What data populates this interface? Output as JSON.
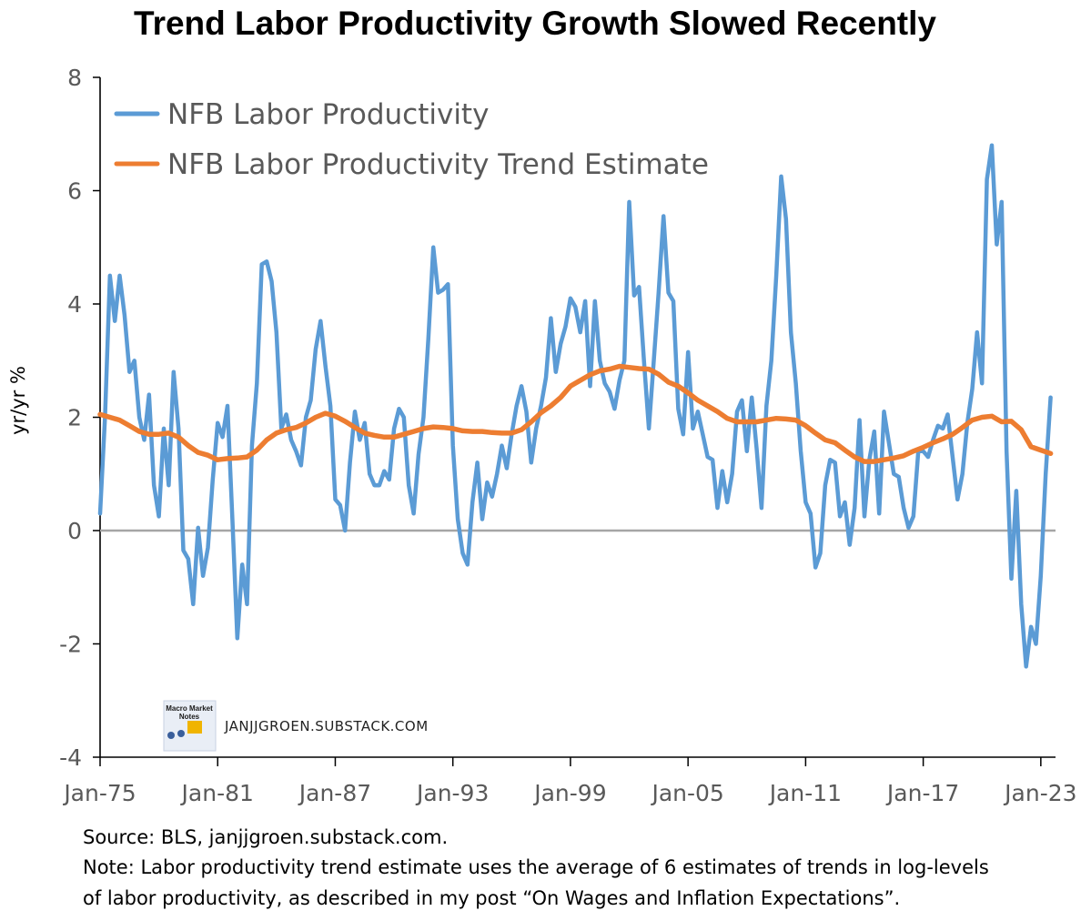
{
  "chart_data": {
    "type": "line",
    "title": "Trend Labor Productivity Growth Slowed Recently",
    "ylabel": "yr/yr %",
    "xlabel": "",
    "ylim": [
      -4,
      8
    ],
    "yticks": [
      -4,
      -2,
      0,
      2,
      4,
      6,
      8
    ],
    "ytick_labels": [
      "-4",
      "-2",
      "0",
      "2",
      "4",
      "6",
      "8"
    ],
    "xlim": [
      1975.0,
      2023.75
    ],
    "xticks": [
      1975,
      1981,
      1987,
      1993,
      1999,
      2005,
      2011,
      2017,
      2023
    ],
    "xtick_labels": [
      "Jan-75",
      "Jan-81",
      "Jan-87",
      "Jan-93",
      "Jan-99",
      "Jan-05",
      "Jan-11",
      "Jan-17",
      "Jan-23"
    ],
    "grid": false,
    "zero_line": true,
    "legend_position": "top-left",
    "series": [
      {
        "name": "NFB Labor Productivity",
        "color": "#5b9bd5",
        "points": [
          [
            1975.0,
            0.3
          ],
          [
            1975.25,
            2.0
          ],
          [
            1975.5,
            4.5
          ],
          [
            1975.75,
            3.7
          ],
          [
            1976.0,
            4.5
          ],
          [
            1976.25,
            3.8
          ],
          [
            1976.5,
            2.8
          ],
          [
            1976.75,
            3.0
          ],
          [
            1977.0,
            2.0
          ],
          [
            1977.25,
            1.6
          ],
          [
            1977.5,
            2.4
          ],
          [
            1977.75,
            0.8
          ],
          [
            1978.0,
            0.25
          ],
          [
            1978.25,
            1.8
          ],
          [
            1978.5,
            0.8
          ],
          [
            1978.75,
            2.8
          ],
          [
            1979.0,
            1.8
          ],
          [
            1979.25,
            -0.35
          ],
          [
            1979.5,
            -0.5
          ],
          [
            1979.75,
            -1.3
          ],
          [
            1980.0,
            0.05
          ],
          [
            1980.25,
            -0.8
          ],
          [
            1980.5,
            -0.3
          ],
          [
            1980.75,
            0.9
          ],
          [
            1981.0,
            1.9
          ],
          [
            1981.25,
            1.65
          ],
          [
            1981.5,
            2.2
          ],
          [
            1981.75,
            0.2
          ],
          [
            1982.0,
            -1.9
          ],
          [
            1982.25,
            -0.6
          ],
          [
            1982.5,
            -1.3
          ],
          [
            1982.75,
            1.5
          ],
          [
            1983.0,
            2.6
          ],
          [
            1983.25,
            4.7
          ],
          [
            1983.5,
            4.75
          ],
          [
            1983.75,
            4.4
          ],
          [
            1984.0,
            3.5
          ],
          [
            1984.25,
            1.8
          ],
          [
            1984.5,
            2.05
          ],
          [
            1984.75,
            1.6
          ],
          [
            1985.0,
            1.4
          ],
          [
            1985.25,
            1.15
          ],
          [
            1985.5,
            2.0
          ],
          [
            1985.75,
            2.3
          ],
          [
            1986.0,
            3.2
          ],
          [
            1986.25,
            3.7
          ],
          [
            1986.5,
            2.9
          ],
          [
            1986.75,
            2.2
          ],
          [
            1987.0,
            0.55
          ],
          [
            1987.25,
            0.45
          ],
          [
            1987.5,
            0.0
          ],
          [
            1987.75,
            1.2
          ],
          [
            1988.0,
            2.1
          ],
          [
            1988.25,
            1.6
          ],
          [
            1988.5,
            1.9
          ],
          [
            1988.75,
            1.0
          ],
          [
            1989.0,
            0.8
          ],
          [
            1989.25,
            0.8
          ],
          [
            1989.5,
            1.05
          ],
          [
            1989.75,
            0.9
          ],
          [
            1990.0,
            1.8
          ],
          [
            1990.25,
            2.15
          ],
          [
            1990.5,
            2.0
          ],
          [
            1990.75,
            0.8
          ],
          [
            1991.0,
            0.3
          ],
          [
            1991.25,
            1.35
          ],
          [
            1991.5,
            2.0
          ],
          [
            1991.75,
            3.4
          ],
          [
            1992.0,
            5.0
          ],
          [
            1992.25,
            4.2
          ],
          [
            1992.5,
            4.25
          ],
          [
            1992.75,
            4.35
          ],
          [
            1993.0,
            1.5
          ],
          [
            1993.25,
            0.2
          ],
          [
            1993.5,
            -0.4
          ],
          [
            1993.75,
            -0.6
          ],
          [
            1994.0,
            0.5
          ],
          [
            1994.25,
            1.2
          ],
          [
            1994.5,
            0.2
          ],
          [
            1994.75,
            0.85
          ],
          [
            1995.0,
            0.6
          ],
          [
            1995.25,
            1.0
          ],
          [
            1995.5,
            1.5
          ],
          [
            1995.75,
            1.1
          ],
          [
            1996.0,
            1.7
          ],
          [
            1996.25,
            2.2
          ],
          [
            1996.5,
            2.55
          ],
          [
            1996.75,
            2.1
          ],
          [
            1997.0,
            1.2
          ],
          [
            1997.25,
            1.8
          ],
          [
            1997.5,
            2.2
          ],
          [
            1997.75,
            2.7
          ],
          [
            1998.0,
            3.75
          ],
          [
            1998.25,
            2.8
          ],
          [
            1998.5,
            3.3
          ],
          [
            1998.75,
            3.6
          ],
          [
            1999.0,
            4.1
          ],
          [
            1999.25,
            3.95
          ],
          [
            1999.5,
            3.5
          ],
          [
            1999.75,
            4.05
          ],
          [
            2000.0,
            2.55
          ],
          [
            2000.25,
            4.05
          ],
          [
            2000.5,
            3.0
          ],
          [
            2000.75,
            2.6
          ],
          [
            2001.0,
            2.45
          ],
          [
            2001.25,
            2.15
          ],
          [
            2001.5,
            2.65
          ],
          [
            2001.75,
            3.0
          ],
          [
            2002.0,
            5.8
          ],
          [
            2002.25,
            4.15
          ],
          [
            2002.5,
            4.3
          ],
          [
            2002.75,
            3.0
          ],
          [
            2003.0,
            1.8
          ],
          [
            2003.25,
            3.0
          ],
          [
            2003.5,
            4.2
          ],
          [
            2003.75,
            5.55
          ],
          [
            2004.0,
            4.2
          ],
          [
            2004.25,
            4.05
          ],
          [
            2004.5,
            2.15
          ],
          [
            2004.75,
            1.7
          ],
          [
            2005.0,
            3.15
          ],
          [
            2005.25,
            1.8
          ],
          [
            2005.5,
            2.1
          ],
          [
            2005.75,
            1.7
          ],
          [
            2006.0,
            1.3
          ],
          [
            2006.25,
            1.25
          ],
          [
            2006.5,
            0.4
          ],
          [
            2006.75,
            1.05
          ],
          [
            2007.0,
            0.5
          ],
          [
            2007.25,
            1.0
          ],
          [
            2007.5,
            2.1
          ],
          [
            2007.75,
            2.3
          ],
          [
            2008.0,
            1.4
          ],
          [
            2008.25,
            2.35
          ],
          [
            2008.5,
            1.45
          ],
          [
            2008.75,
            0.4
          ],
          [
            2009.0,
            2.2
          ],
          [
            2009.25,
            3.0
          ],
          [
            2009.5,
            4.5
          ],
          [
            2009.75,
            6.25
          ],
          [
            2010.0,
            5.5
          ],
          [
            2010.25,
            3.5
          ],
          [
            2010.5,
            2.6
          ],
          [
            2010.75,
            1.4
          ],
          [
            2011.0,
            0.5
          ],
          [
            2011.25,
            0.3
          ],
          [
            2011.5,
            -0.65
          ],
          [
            2011.75,
            -0.4
          ],
          [
            2012.0,
            0.8
          ],
          [
            2012.25,
            1.25
          ],
          [
            2012.5,
            1.2
          ],
          [
            2012.75,
            0.25
          ],
          [
            2013.0,
            0.5
          ],
          [
            2013.25,
            -0.25
          ],
          [
            2013.5,
            0.4
          ],
          [
            2013.75,
            1.95
          ],
          [
            2014.0,
            0.25
          ],
          [
            2014.25,
            1.25
          ],
          [
            2014.5,
            1.75
          ],
          [
            2014.75,
            0.3
          ],
          [
            2015.0,
            2.1
          ],
          [
            2015.25,
            1.55
          ],
          [
            2015.5,
            1.0
          ],
          [
            2015.75,
            0.95
          ],
          [
            2016.0,
            0.4
          ],
          [
            2016.25,
            0.05
          ],
          [
            2016.5,
            0.25
          ],
          [
            2016.75,
            1.4
          ],
          [
            2017.0,
            1.4
          ],
          [
            2017.25,
            1.3
          ],
          [
            2017.5,
            1.6
          ],
          [
            2017.75,
            1.85
          ],
          [
            2018.0,
            1.8
          ],
          [
            2018.25,
            2.05
          ],
          [
            2018.5,
            1.3
          ],
          [
            2018.75,
            0.55
          ],
          [
            2019.0,
            1.0
          ],
          [
            2019.25,
            1.9
          ],
          [
            2019.5,
            2.5
          ],
          [
            2019.75,
            3.5
          ],
          [
            2020.0,
            2.6
          ],
          [
            2020.25,
            6.2
          ],
          [
            2020.5,
            6.8
          ],
          [
            2020.75,
            5.05
          ],
          [
            2021.0,
            5.8
          ],
          [
            2021.25,
            1.4
          ],
          [
            2021.5,
            -0.85
          ],
          [
            2021.75,
            0.7
          ],
          [
            2022.0,
            -1.3
          ],
          [
            2022.25,
            -2.4
          ],
          [
            2022.5,
            -1.7
          ],
          [
            2022.75,
            -2.0
          ],
          [
            2023.0,
            -0.8
          ],
          [
            2023.25,
            1.0
          ],
          [
            2023.5,
            2.35
          ]
        ]
      },
      {
        "name": "NFB Labor Productivity Trend Estimate",
        "color": "#ed7d31",
        "points": [
          [
            1975.0,
            2.05
          ],
          [
            1975.5,
            2.0
          ],
          [
            1976.0,
            1.95
          ],
          [
            1976.5,
            1.85
          ],
          [
            1977.0,
            1.75
          ],
          [
            1977.5,
            1.7
          ],
          [
            1978.0,
            1.7
          ],
          [
            1978.5,
            1.72
          ],
          [
            1979.0,
            1.65
          ],
          [
            1979.5,
            1.5
          ],
          [
            1980.0,
            1.38
          ],
          [
            1980.5,
            1.33
          ],
          [
            1981.0,
            1.25
          ],
          [
            1981.5,
            1.27
          ],
          [
            1982.0,
            1.28
          ],
          [
            1982.5,
            1.3
          ],
          [
            1983.0,
            1.42
          ],
          [
            1983.5,
            1.6
          ],
          [
            1984.0,
            1.72
          ],
          [
            1984.5,
            1.78
          ],
          [
            1985.0,
            1.82
          ],
          [
            1985.5,
            1.9
          ],
          [
            1986.0,
            2.0
          ],
          [
            1986.5,
            2.07
          ],
          [
            1987.0,
            2.02
          ],
          [
            1987.5,
            1.93
          ],
          [
            1988.0,
            1.82
          ],
          [
            1988.5,
            1.72
          ],
          [
            1989.0,
            1.68
          ],
          [
            1989.5,
            1.65
          ],
          [
            1990.0,
            1.65
          ],
          [
            1990.5,
            1.7
          ],
          [
            1991.0,
            1.75
          ],
          [
            1991.5,
            1.8
          ],
          [
            1992.0,
            1.83
          ],
          [
            1992.5,
            1.82
          ],
          [
            1993.0,
            1.8
          ],
          [
            1993.5,
            1.76
          ],
          [
            1994.0,
            1.75
          ],
          [
            1994.5,
            1.75
          ],
          [
            1995.0,
            1.73
          ],
          [
            1995.5,
            1.72
          ],
          [
            1996.0,
            1.72
          ],
          [
            1996.5,
            1.78
          ],
          [
            1997.0,
            1.92
          ],
          [
            1997.5,
            2.08
          ],
          [
            1998.0,
            2.2
          ],
          [
            1998.5,
            2.35
          ],
          [
            1999.0,
            2.55
          ],
          [
            1999.5,
            2.65
          ],
          [
            2000.0,
            2.75
          ],
          [
            2000.5,
            2.82
          ],
          [
            2001.0,
            2.85
          ],
          [
            2001.5,
            2.9
          ],
          [
            2002.0,
            2.88
          ],
          [
            2002.5,
            2.86
          ],
          [
            2003.0,
            2.85
          ],
          [
            2003.5,
            2.76
          ],
          [
            2004.0,
            2.62
          ],
          [
            2004.5,
            2.55
          ],
          [
            2005.0,
            2.43
          ],
          [
            2005.5,
            2.3
          ],
          [
            2006.0,
            2.2
          ],
          [
            2006.5,
            2.1
          ],
          [
            2007.0,
            1.98
          ],
          [
            2007.5,
            1.92
          ],
          [
            2008.0,
            1.92
          ],
          [
            2008.5,
            1.92
          ],
          [
            2009.0,
            1.95
          ],
          [
            2009.5,
            1.98
          ],
          [
            2010.0,
            1.97
          ],
          [
            2010.5,
            1.95
          ],
          [
            2011.0,
            1.85
          ],
          [
            2011.5,
            1.72
          ],
          [
            2012.0,
            1.6
          ],
          [
            2012.5,
            1.55
          ],
          [
            2013.0,
            1.42
          ],
          [
            2013.5,
            1.3
          ],
          [
            2014.0,
            1.22
          ],
          [
            2014.5,
            1.22
          ],
          [
            2015.0,
            1.25
          ],
          [
            2015.5,
            1.28
          ],
          [
            2016.0,
            1.32
          ],
          [
            2016.5,
            1.4
          ],
          [
            2017.0,
            1.47
          ],
          [
            2017.5,
            1.55
          ],
          [
            2018.0,
            1.62
          ],
          [
            2018.5,
            1.7
          ],
          [
            2019.0,
            1.82
          ],
          [
            2019.5,
            1.95
          ],
          [
            2020.0,
            2.0
          ],
          [
            2020.5,
            2.02
          ],
          [
            2021.0,
            1.92
          ],
          [
            2021.5,
            1.93
          ],
          [
            2022.0,
            1.78
          ],
          [
            2022.5,
            1.48
          ],
          [
            2023.0,
            1.42
          ],
          [
            2023.5,
            1.36
          ]
        ]
      }
    ],
    "zero_line_color": "#a6a6a6"
  },
  "watermark": {
    "logo_text_line1": "Macro Market",
    "logo_text_line2": "Notes",
    "site": "JANJJGROEN.SUBSTACK.COM"
  },
  "footnotes": {
    "source": "Source: BLS, janjjgroen.substack.com.",
    "note_line1": "Note: Labor productivity trend estimate uses the average of 6 estimates of trends in log-levels",
    "note_line2": "of labor productivity, as described in my post “On Wages and Inflation Expectations”."
  }
}
